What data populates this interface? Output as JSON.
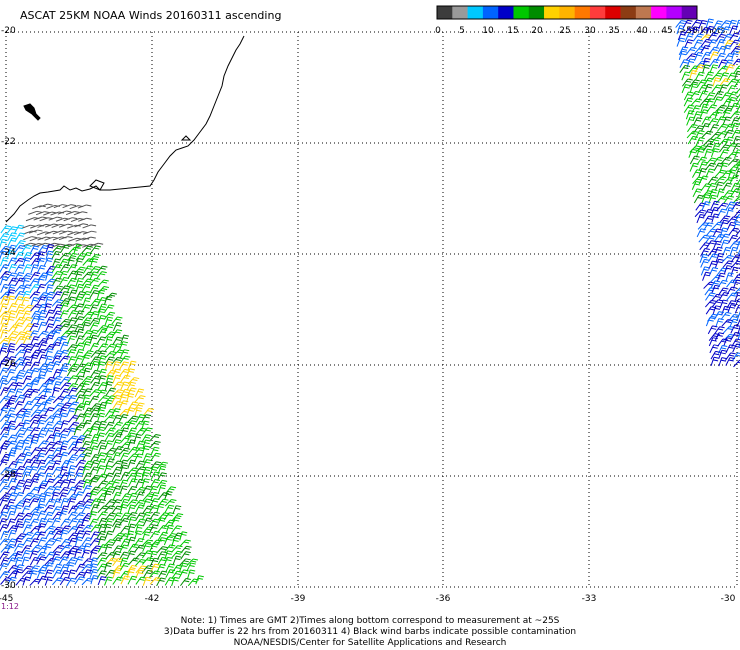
{
  "title": "ASCAT 25KM NOAA Winds 20160311 ascending",
  "colorbar": {
    "labels": [
      "0",
      "5",
      "10",
      "15",
      "20",
      "25",
      "30",
      "35",
      "40",
      "45",
      ">50 knots"
    ],
    "colors": [
      "#3c3c3c",
      "#9a9a9a",
      "#00c8ff",
      "#0064ff",
      "#0000c8",
      "#00c800",
      "#008c00",
      "#ffd200",
      "#ffb400",
      "#ff7800",
      "#ff3c3c",
      "#dc0000",
      "#8c3c14",
      "#be7850",
      "#ff00ff",
      "#b400ff",
      "#6400b4"
    ]
  },
  "map": {
    "lat_labels": [
      "-20",
      "-22",
      "-24",
      "-26",
      "-28",
      "-30"
    ],
    "lon_labels": [
      "-45",
      "-42",
      "-39",
      "-36",
      "-33",
      "-30"
    ],
    "time_label": "1:12"
  },
  "notes": {
    "line1": "Note: 1) Times are GMT 2)Times along bottom correspond to measurement at ~25S",
    "line2": "3)Data buffer is 22 hrs from 20160311 4) Black wind barbs indicate possible contamination",
    "line3": "NOAA/NESDIS/Center for Satellite Applications and Research"
  }
}
